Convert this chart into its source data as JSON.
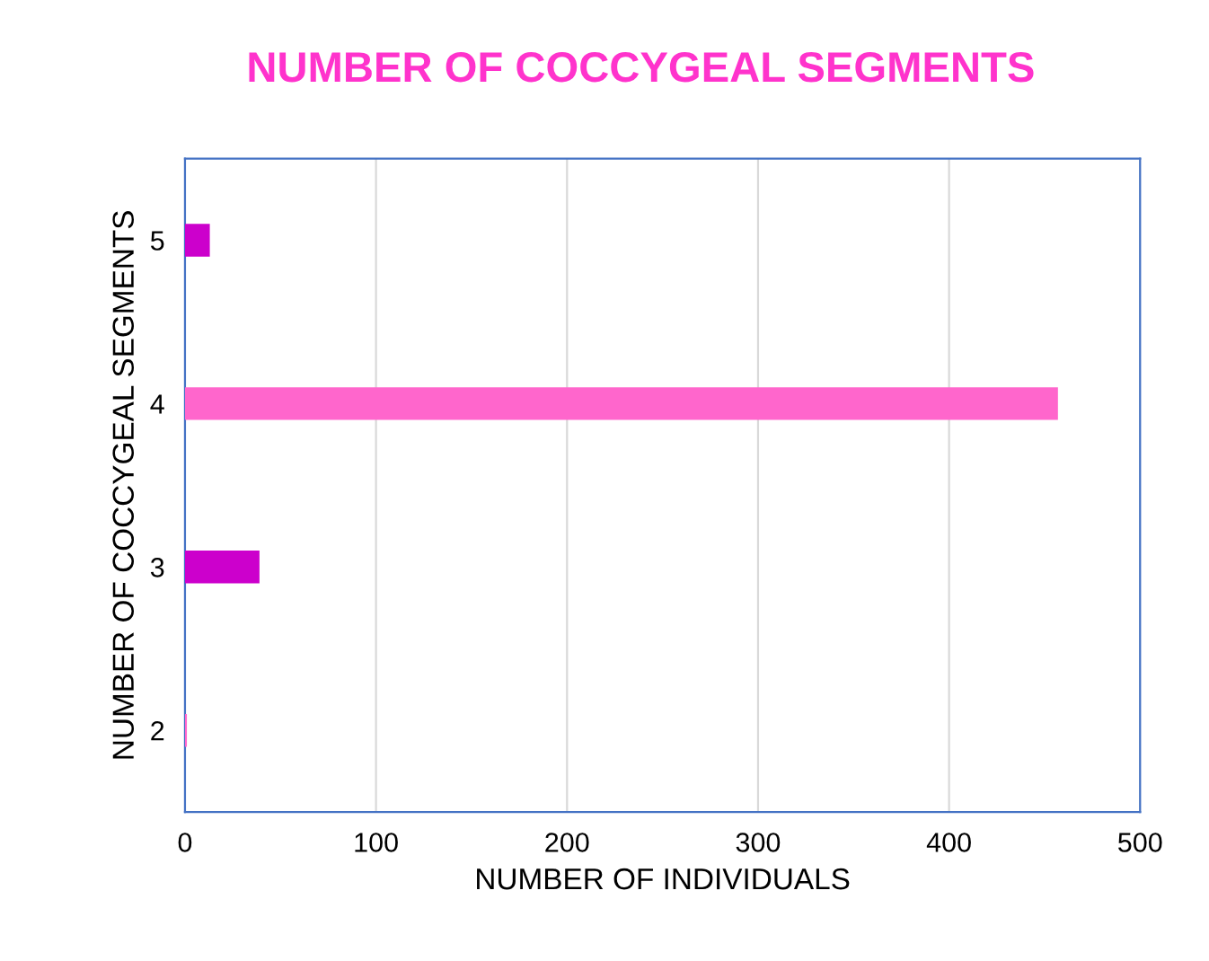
{
  "chart_data": {
    "type": "bar",
    "orientation": "horizontal",
    "title": "NUMBER OF COCCYGEAL SEGMENTS",
    "xlabel": "NUMBER OF INDIVIDUALS",
    "ylabel": "NUMBER OF COCCYGEAL SEGMENTS",
    "categories": [
      "5",
      "4",
      "3",
      "2"
    ],
    "values": [
      13,
      457,
      39,
      1
    ],
    "colors": [
      "#cc00cc",
      "#ff66cc",
      "#cc00cc",
      "#ff66cc"
    ],
    "xlim": [
      0,
      500
    ],
    "xticks": [
      0,
      100,
      200,
      300,
      400,
      500
    ],
    "grid": "x"
  }
}
